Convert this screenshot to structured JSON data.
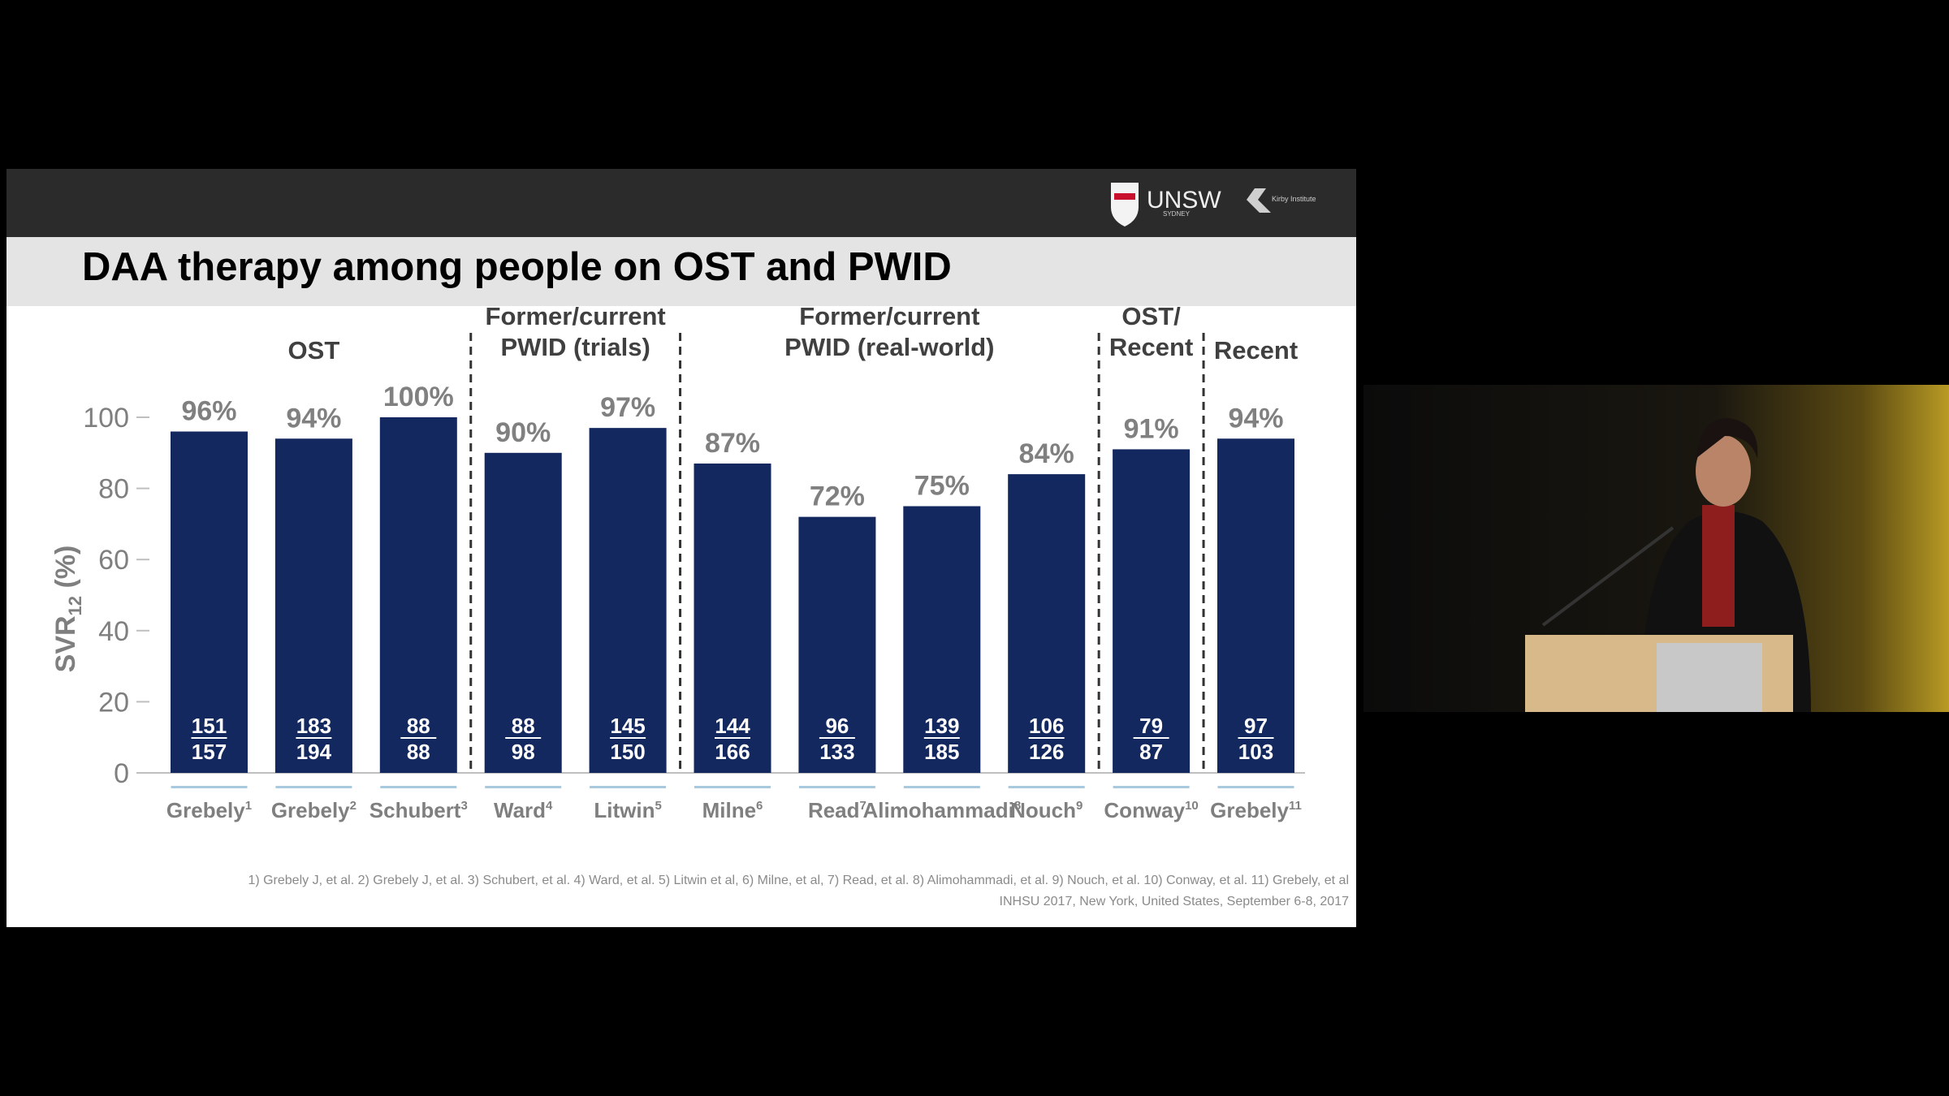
{
  "chart_data": {
    "type": "bar",
    "title": "DAA therapy among people on OST and PWID",
    "y_label": [
      "SVR",
      "12",
      " (%)"
    ],
    "ylim": [
      0,
      100
    ],
    "yticks": [
      0,
      20,
      40,
      60,
      80,
      100
    ],
    "color": "#13285f",
    "groups": [
      {
        "label": [
          "OST"
        ],
        "categories": [
          "Grebely",
          "Grebely",
          "Schubert"
        ],
        "refs": [
          "1",
          "2",
          "3"
        ],
        "values": [
          96,
          94,
          100
        ],
        "value_labels": [
          "96%",
          "94%",
          "100%"
        ],
        "responders": [
          151,
          183,
          88
        ],
        "totals": [
          157,
          194,
          88
        ]
      },
      {
        "label": [
          "Former/current",
          "PWID (trials)"
        ],
        "categories": [
          "Ward",
          "Litwin"
        ],
        "refs": [
          "4",
          "5"
        ],
        "values": [
          90,
          97
        ],
        "value_labels": [
          "90%",
          "97%"
        ],
        "responders": [
          88,
          145
        ],
        "totals": [
          98,
          150
        ]
      },
      {
        "label": [
          "Former/current",
          "PWID (real-world)"
        ],
        "categories": [
          "Milne",
          "Read",
          "Alimohammadi",
          "Nouch"
        ],
        "refs": [
          "6",
          "7",
          "8",
          "9"
        ],
        "values": [
          87,
          72,
          75,
          84
        ],
        "value_labels": [
          "87%",
          "72%",
          "75%",
          "84%"
        ],
        "responders": [
          144,
          96,
          139,
          106
        ],
        "totals": [
          166,
          133,
          185,
          126
        ]
      },
      {
        "label": [
          "OST/",
          "Recent"
        ],
        "categories": [
          "Conway"
        ],
        "refs": [
          "10"
        ],
        "values": [
          91
        ],
        "value_labels": [
          "91%"
        ],
        "responders": [
          79
        ],
        "totals": [
          87
        ]
      },
      {
        "label": [
          "Recent"
        ],
        "categories": [
          "Grebely"
        ],
        "refs": [
          "11"
        ],
        "values": [
          94
        ],
        "value_labels": [
          "94%"
        ],
        "responders": [
          97
        ],
        "totals": [
          103
        ]
      }
    ]
  },
  "slide": {
    "logos": [
      "UNSW",
      "SYDNEY",
      "Kirby Institute"
    ],
    "footnote": [
      "1) Grebely J, et al. 2) Grebely J, et al. 3) Schubert, et al. 4) Ward, et al. 5) Litwin et al, 6) Milne, et al, 7) Read, et al. 8) Alimohammadi, et al. 9) Nouch, et al. 10) Conway, et al. 11) Grebely, et al",
      "INHSU 2017, New York, United States, September 6-8, 2017"
    ]
  }
}
